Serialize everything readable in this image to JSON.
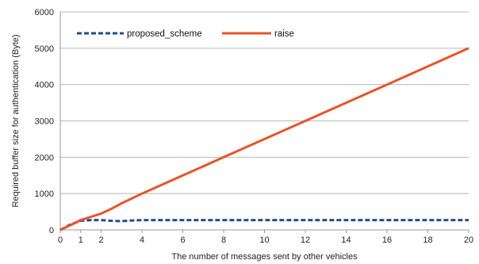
{
  "chart_data": {
    "type": "line",
    "title": "",
    "xlabel": "The number of messages sent by other vehicles",
    "ylabel": "Required buffer size for authentication (Byte)",
    "xlim": [
      0,
      20
    ],
    "ylim": [
      0,
      6000
    ],
    "x_ticks": [
      0,
      2,
      4,
      6,
      8,
      10,
      12,
      14,
      16,
      18,
      20
    ],
    "x_extra_ticks": [
      1
    ],
    "y_ticks": [
      0,
      1000,
      2000,
      3000,
      4000,
      5000,
      6000
    ],
    "grid": "horizontal",
    "legend_position": "top-left",
    "series": [
      {
        "name": "proposed_scheme",
        "color": "#1f4e8c",
        "style": "dashed",
        "x": [
          0,
          0.5,
          1,
          1.5,
          2,
          2.5,
          3,
          3.5,
          4,
          5,
          6,
          8,
          10,
          12,
          14,
          16,
          18,
          20
        ],
        "y": [
          0,
          150,
          250,
          270,
          270,
          250,
          240,
          260,
          270,
          270,
          270,
          270,
          270,
          270,
          270,
          270,
          270,
          270
        ]
      },
      {
        "name": "raise",
        "color": "#e8542a",
        "style": "solid",
        "x": [
          0,
          0.5,
          1,
          1.5,
          2,
          2.5,
          3,
          4,
          6,
          8,
          10,
          12,
          14,
          16,
          18,
          20
        ],
        "y": [
          0,
          130,
          270,
          360,
          450,
          580,
          730,
          1000,
          1500,
          2000,
          2500,
          3000,
          3500,
          4000,
          4500,
          5000
        ]
      }
    ]
  }
}
